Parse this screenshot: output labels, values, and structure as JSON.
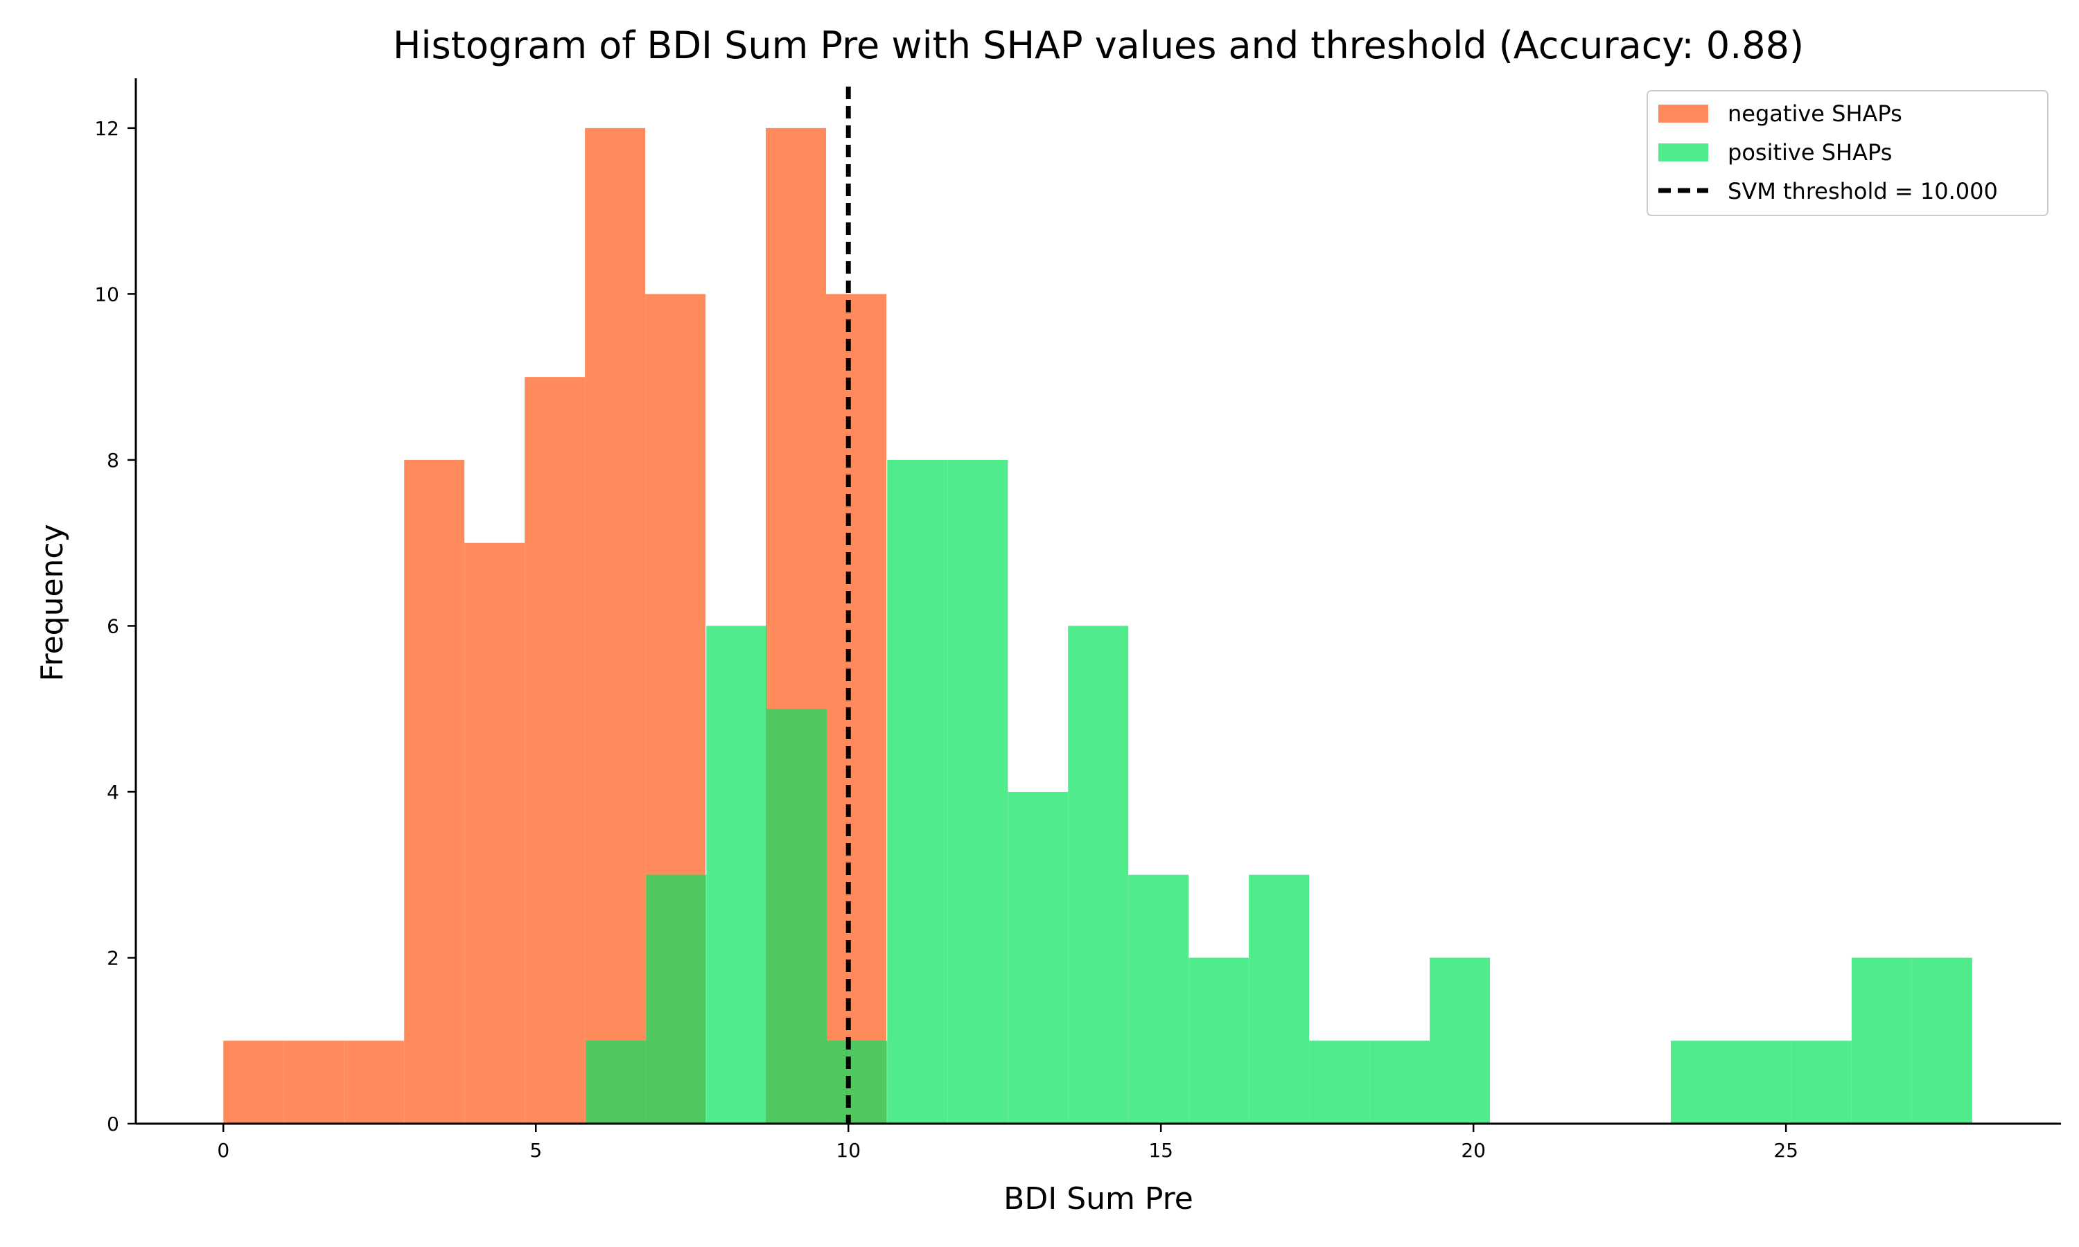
{
  "chart_data": {
    "type": "bar",
    "title": "Histogram of BDI Sum Pre with SHAP values and threshold (Accuracy: 0.88)",
    "xlabel": "BDI Sum Pre",
    "ylabel": "Frequency",
    "xlim": [
      -1.4,
      29.4
    ],
    "ylim": [
      0,
      12.6
    ],
    "xticks": [
      0,
      5,
      10,
      15,
      20,
      25
    ],
    "yticks": [
      0,
      2,
      4,
      6,
      8,
      10,
      12
    ],
    "grid": false,
    "legend_position": "top-right",
    "overlap_color": "#50C85F",
    "series": [
      {
        "name": "negative SHAPs",
        "color": "#FF8A5C",
        "bin_start": 0,
        "bin_width": 0.9643,
        "values": [
          1,
          1,
          1,
          8,
          7,
          9,
          12,
          10,
          0,
          12,
          10
        ]
      },
      {
        "name": "positive SHAPs",
        "color": "#50EC8C",
        "bin_start": 5.8,
        "bin_width": 0.9643,
        "values": [
          1,
          3,
          6,
          5,
          1,
          8,
          8,
          4,
          6,
          3,
          2,
          3,
          1,
          1,
          2,
          0,
          0,
          0,
          1,
          1,
          1,
          2,
          2
        ]
      }
    ],
    "threshold": {
      "name": "SVM threshold = 10.000",
      "value": 10.0,
      "color": "#000000"
    }
  }
}
